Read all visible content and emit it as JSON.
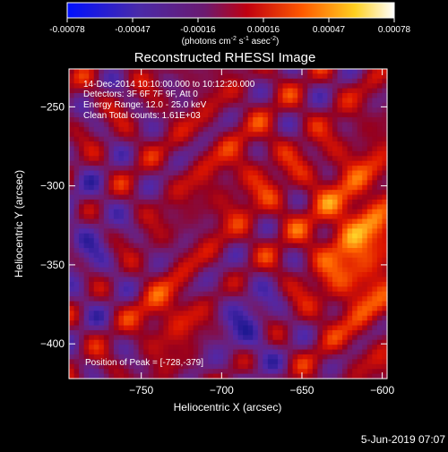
{
  "chart_data": {
    "type": "heatmap",
    "title": "Reconstructed RHESSI Image",
    "xlabel": "Heliocentric X (arcsec)",
    "ylabel": "Heliocentric Y (arcsec)",
    "xlim": [
      -795,
      -597
    ],
    "ylim": [
      -422,
      -226
    ],
    "xticks": [
      -750,
      -700,
      -650,
      -600
    ],
    "yticks": [
      -250,
      -300,
      -350,
      -400
    ],
    "colorbar": {
      "ticks": [
        "-0.00078",
        "-0.00047",
        "-0.00016",
        "0.00016",
        "0.00047",
        "0.00078"
      ],
      "unit_main": "(photons cm",
      "unit_sup1": "-2",
      "unit_mid1": " s",
      "unit_sup2": "-1",
      "unit_mid2": " asec",
      "unit_sup3": "-2",
      "unit_end": ")"
    },
    "annotations": {
      "time": "14-Dec-2014 10:10:00.000 to 10:12:20.000",
      "detectors": "Detectors: 3F 6F 7F 9F, Att 0",
      "energy": "Energy Range: 12.0 - 25.0 keV",
      "clean": "Clean    Total counts: 1.61E+03",
      "peak": "Position of Peak = [-728,-379]"
    },
    "footer_date": "5-Jun-2019 07:07"
  }
}
